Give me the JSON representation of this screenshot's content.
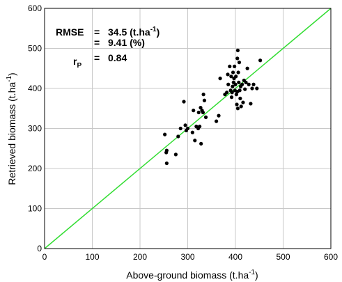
{
  "chart_data": {
    "type": "scatter",
    "xlabel": "Above-ground biomass (t.ha",
    "xlabel_sup": "-1",
    "xlabel_end": ")",
    "ylabel": "Retrieved biomass (t.ha",
    "ylabel_sup": "-1",
    "ylabel_end": ")",
    "xlim": [
      0,
      600
    ],
    "ylim": [
      0,
      600
    ],
    "xticks": [
      0,
      100,
      200,
      300,
      400,
      500,
      600
    ],
    "yticks": [
      0,
      100,
      200,
      300,
      400,
      500,
      600
    ],
    "grid": true,
    "reference_line": {
      "x": [
        0,
        600
      ],
      "y": [
        0,
        600
      ],
      "color": "#33dd33"
    },
    "point_color": "#000000",
    "annotations": {
      "rmse_label": "RMSE",
      "rmse_eq1": "=",
      "rmse_value1": "34.5 (t.ha",
      "rmse_value1_sup": "-1",
      "rmse_value1_end": ")",
      "rmse_eq2": "=",
      "rmse_value2": "9.41 (%)",
      "rp_label": "r",
      "rp_sub": "P",
      "rp_eq": "=",
      "rp_value": "0.84"
    },
    "points": [
      [
        252,
        285
      ],
      [
        255,
        240
      ],
      [
        256,
        245
      ],
      [
        256,
        213
      ],
      [
        275,
        235
      ],
      [
        280,
        280
      ],
      [
        285,
        300
      ],
      [
        292,
        367
      ],
      [
        295,
        308
      ],
      [
        297,
        295
      ],
      [
        300,
        300
      ],
      [
        310,
        290
      ],
      [
        312,
        345
      ],
      [
        315,
        270
      ],
      [
        318,
        305
      ],
      [
        322,
        300
      ],
      [
        323,
        340
      ],
      [
        325,
        305
      ],
      [
        327,
        352
      ],
      [
        328,
        262
      ],
      [
        330,
        345
      ],
      [
        332,
        340
      ],
      [
        333,
        385
      ],
      [
        335,
        370
      ],
      [
        338,
        328
      ],
      [
        360,
        318
      ],
      [
        365,
        332
      ],
      [
        368,
        425
      ],
      [
        378,
        385
      ],
      [
        382,
        390
      ],
      [
        384,
        435
      ],
      [
        385,
        410
      ],
      [
        388,
        455
      ],
      [
        390,
        395
      ],
      [
        391,
        430
      ],
      [
        392,
        378
      ],
      [
        393,
        390
      ],
      [
        394,
        405
      ],
      [
        395,
        440
      ],
      [
        396,
        415
      ],
      [
        397,
        425
      ],
      [
        398,
        455
      ],
      [
        399,
        395
      ],
      [
        400,
        410
      ],
      [
        401,
        430
      ],
      [
        402,
        385
      ],
      [
        403,
        360
      ],
      [
        404,
        475
      ],
      [
        404,
        392
      ],
      [
        405,
        495
      ],
      [
        405,
        350
      ],
      [
        406,
        440
      ],
      [
        407,
        415
      ],
      [
        408,
        465
      ],
      [
        409,
        395
      ],
      [
        410,
        375
      ],
      [
        411,
        405
      ],
      [
        412,
        355
      ],
      [
        414,
        410
      ],
      [
        416,
        365
      ],
      [
        418,
        420
      ],
      [
        420,
        398
      ],
      [
        422,
        415
      ],
      [
        425,
        450
      ],
      [
        428,
        410
      ],
      [
        432,
        362
      ],
      [
        435,
        400
      ],
      [
        438,
        410
      ],
      [
        445,
        400
      ],
      [
        452,
        470
      ]
    ]
  }
}
